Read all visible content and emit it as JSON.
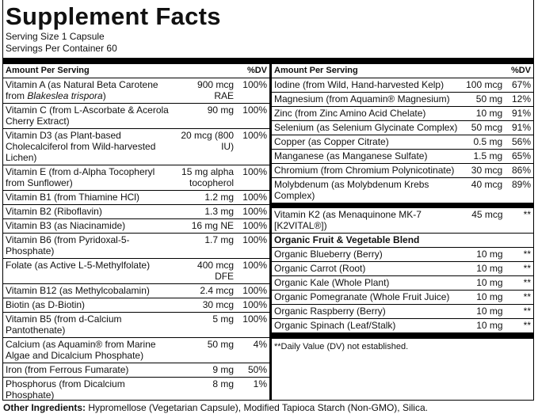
{
  "title": "Supplement Facts",
  "serving_size": "Serving Size 1 Capsule",
  "servings_per_container": "Servings Per Container 60",
  "header": {
    "amount": "Amount Per Serving",
    "dv": "%DV"
  },
  "left_rows": [
    {
      "name": [
        "Vitamin A (as Natural Beta Carotene from ",
        "Blakeslea trispora",
        ")"
      ],
      "amount": "900 mcg RAE",
      "dv": "100%"
    },
    {
      "name": "Vitamin C (from L-Ascorbate & Acerola Cherry Extract)",
      "amount": "90 mg",
      "dv": "100%"
    },
    {
      "name": "Vitamin D3 (as Plant-based Cholecalciferol from Wild-harvested Lichen)",
      "amount": "20 mcg (800 IU)",
      "dv": "100%"
    },
    {
      "name": "Vitamin E (from d-Alpha Tocopheryl from Sunflower)",
      "amount": "15 mg alpha tocopherol",
      "dv": "100%"
    },
    {
      "name": "Vitamin B1 (from Thiamine HCl)",
      "amount": "1.2 mg",
      "dv": "100%"
    },
    {
      "name": "Vitamin B2 (Riboflavin)",
      "amount": "1.3 mg",
      "dv": "100%"
    },
    {
      "name": "Vitamin B3 (as Niacinamide)",
      "amount": "16 mg NE",
      "dv": "100%"
    },
    {
      "name": "Vitamin B6 (from Pyridoxal-5-Phosphate)",
      "amount": "1.7 mg",
      "dv": "100%"
    },
    {
      "name": "Folate (as Active L-5-Methylfolate)",
      "amount": "400 mcg DFE",
      "dv": "100%"
    },
    {
      "name": "Vitamin B12 (as Methylcobalamin)",
      "amount": "2.4 mcg",
      "dv": "100%"
    },
    {
      "name": "Biotin (as D-Biotin)",
      "amount": "30 mcg",
      "dv": "100%"
    },
    {
      "name": "Vitamin B5 (from d-Calcium Pantothenate)",
      "amount": "5 mg",
      "dv": "100%"
    },
    {
      "name": "Calcium (as Aquamin® from Marine Algae and Dicalcium Phosphate)",
      "amount": "50 mg",
      "dv": "4%"
    },
    {
      "name": "Iron (from Ferrous Fumarate)",
      "amount": "9 mg",
      "dv": "50%"
    },
    {
      "name": "Phosphorus (from Dicalcium Phosphate)",
      "amount": "8 mg",
      "dv": "1%"
    }
  ],
  "right_rows": [
    {
      "name": "Iodine (from Wild, Hand-harvested Kelp)",
      "amount": "100 mcg",
      "dv": "67%"
    },
    {
      "name": "Magnesium (from Aquamin® Magnesium)",
      "amount": "50 mg",
      "dv": "12%"
    },
    {
      "name": "Zinc (from Zinc Amino Acid Chelate)",
      "amount": "10 mg",
      "dv": "91%"
    },
    {
      "name": "Selenium (as Selenium Glycinate Complex)",
      "amount": "50 mcg",
      "dv": "91%"
    },
    {
      "name": "Copper (as Copper Citrate)",
      "amount": "0.5 mg",
      "dv": "56%"
    },
    {
      "name": "Manganese (as Manganese Sulfate)",
      "amount": "1.5 mg",
      "dv": "65%"
    },
    {
      "name": "Chromium (from Chromium Polynicotinate)",
      "amount": "30 mcg",
      "dv": "86%"
    },
    {
      "name": "Molybdenum (as Molybdenum Krebs Complex)",
      "amount": "40 mcg",
      "dv": "89%"
    }
  ],
  "k2_row": {
    "name": "Vitamin K2 (as Menaquinone MK-7 [K2VITAL®])",
    "amount": "45 mcg",
    "dv": "**"
  },
  "blend": {
    "title": "Organic Fruit & Vegetable Blend",
    "rows": [
      {
        "name": "Organic Blueberry (Berry)",
        "amount": "10 mg",
        "dv": "**"
      },
      {
        "name": "Organic Carrot (Root)",
        "amount": "10 mg",
        "dv": "**"
      },
      {
        "name": "Organic Kale (Whole Plant)",
        "amount": "10 mg",
        "dv": "**"
      },
      {
        "name": "Organic Pomegranate (Whole Fruit Juice)",
        "amount": "10 mg",
        "dv": "**"
      },
      {
        "name": "Organic Raspberry (Berry)",
        "amount": "10 mg",
        "dv": "**"
      },
      {
        "name": "Organic Spinach (Leaf/Stalk)",
        "amount": "10 mg",
        "dv": "**"
      }
    ]
  },
  "footnote": "**Daily Value (DV) not established.",
  "other_ingredients": {
    "label": "Other Ingredients:",
    "text": "Hypromellose (Vegetarian Capsule), Modified Tapioca Starch (Non-GMO), Silica."
  }
}
